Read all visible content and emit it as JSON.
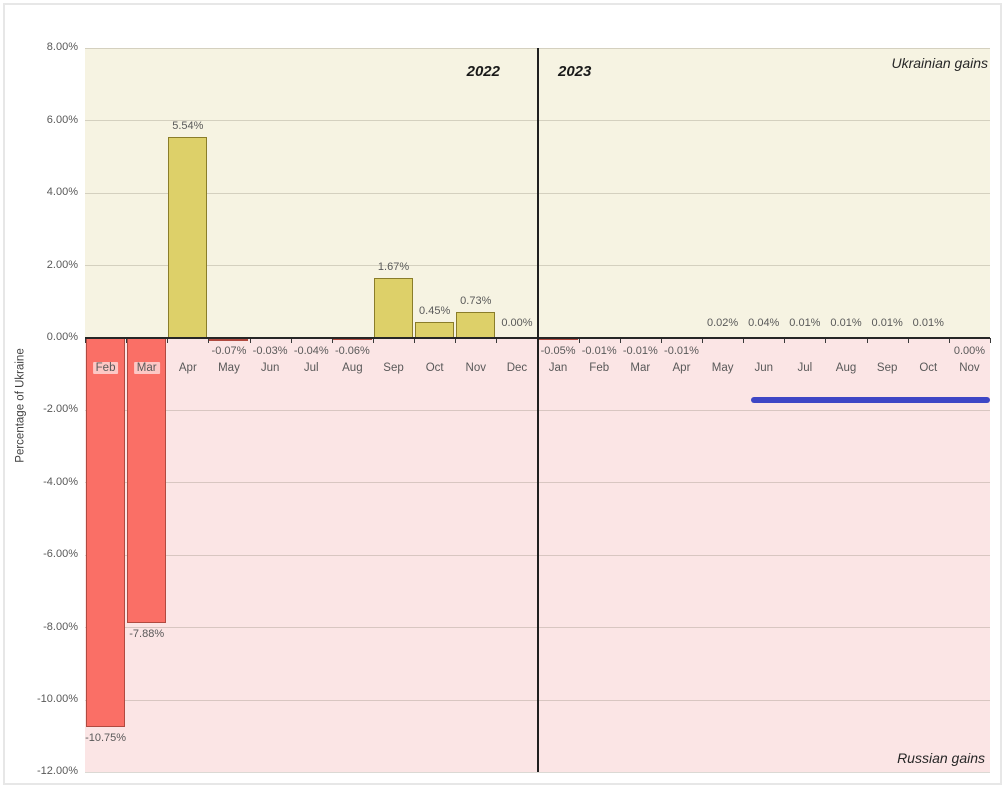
{
  "colors": {
    "positive_region_bg": "#f6f3e2",
    "negative_region_bg": "#fbe5e5",
    "positive_bar_fill": "#ddd069",
    "positive_bar_border": "#8a7d2a",
    "negative_bar_fill": "#fa6f66",
    "negative_bar_border": "#b04a40",
    "annotation_line": "#3e46c5",
    "axis_line": "#262626"
  },
  "chart_data": {
    "type": "bar",
    "ylabel": "Percentage of Ukraine",
    "ylim": [
      -12,
      8
    ],
    "grid": true,
    "y_ticks": [
      {
        "value": 8,
        "label": "8.00%"
      },
      {
        "value": 6,
        "label": "6.00%"
      },
      {
        "value": 4,
        "label": "4.00%"
      },
      {
        "value": 2,
        "label": "2.00%"
      },
      {
        "value": 0,
        "label": "0.00%"
      },
      {
        "value": -2,
        "label": "-2.00%"
      },
      {
        "value": -4,
        "label": "-4.00%"
      },
      {
        "value": -6,
        "label": "-6.00%"
      },
      {
        "value": -8,
        "label": "-8.00%"
      },
      {
        "value": -10,
        "label": "-10.00%"
      },
      {
        "value": -12,
        "label": "-12.00%"
      }
    ],
    "points": [
      {
        "year": 2022,
        "month": "Feb",
        "value": -10.75,
        "label": "-10.75%",
        "label_pos": "below_bar",
        "month_label_boxed": true
      },
      {
        "year": 2022,
        "month": "Mar",
        "value": -7.88,
        "label": "-7.88%",
        "label_pos": "below_bar",
        "month_label_boxed": true
      },
      {
        "year": 2022,
        "month": "Apr",
        "value": 5.54,
        "label": "5.54%",
        "label_pos": "above_bar",
        "month_label_boxed": false
      },
      {
        "year": 2022,
        "month": "May",
        "value": -0.07,
        "label": "-0.07%",
        "label_pos": "below_axis",
        "month_label_boxed": false
      },
      {
        "year": 2022,
        "month": "Jun",
        "value": -0.03,
        "label": "-0.03%",
        "label_pos": "below_axis",
        "month_label_boxed": false
      },
      {
        "year": 2022,
        "month": "Jul",
        "value": -0.04,
        "label": "-0.04%",
        "label_pos": "below_axis",
        "month_label_boxed": false
      },
      {
        "year": 2022,
        "month": "Aug",
        "value": -0.06,
        "label": "-0.06%",
        "label_pos": "below_axis",
        "month_label_boxed": false
      },
      {
        "year": 2022,
        "month": "Sep",
        "value": 1.67,
        "label": "1.67%",
        "label_pos": "above_bar",
        "month_label_boxed": false
      },
      {
        "year": 2022,
        "month": "Oct",
        "value": 0.45,
        "label": "0.45%",
        "label_pos": "above_bar",
        "month_label_boxed": false
      },
      {
        "year": 2022,
        "month": "Nov",
        "value": 0.73,
        "label": "0.73%",
        "label_pos": "above_bar",
        "month_label_boxed": false
      },
      {
        "year": 2022,
        "month": "Dec",
        "value": 0.0,
        "label": "0.00%",
        "label_pos": "above_axis",
        "month_label_boxed": false
      },
      {
        "year": 2023,
        "month": "Jan",
        "value": -0.05,
        "label": "-0.05%",
        "label_pos": "below_axis",
        "month_label_boxed": false
      },
      {
        "year": 2023,
        "month": "Feb",
        "value": -0.01,
        "label": "-0.01%",
        "label_pos": "below_axis",
        "month_label_boxed": false
      },
      {
        "year": 2023,
        "month": "Mar",
        "value": -0.01,
        "label": "-0.01%",
        "label_pos": "below_axis",
        "month_label_boxed": false
      },
      {
        "year": 2023,
        "month": "Apr",
        "value": -0.01,
        "label": "-0.01%",
        "label_pos": "below_axis",
        "month_label_boxed": false
      },
      {
        "year": 2023,
        "month": "May",
        "value": 0.02,
        "label": "0.02%",
        "label_pos": "above_axis",
        "month_label_boxed": false
      },
      {
        "year": 2023,
        "month": "Jun",
        "value": 0.04,
        "label": "0.04%",
        "label_pos": "above_axis",
        "month_label_boxed": false
      },
      {
        "year": 2023,
        "month": "Jul",
        "value": 0.01,
        "label": "0.01%",
        "label_pos": "above_axis",
        "month_label_boxed": false
      },
      {
        "year": 2023,
        "month": "Aug",
        "value": 0.01,
        "label": "0.01%",
        "label_pos": "above_axis",
        "month_label_boxed": false
      },
      {
        "year": 2023,
        "month": "Sep",
        "value": 0.01,
        "label": "0.01%",
        "label_pos": "above_axis",
        "month_label_boxed": false
      },
      {
        "year": 2023,
        "month": "Oct",
        "value": 0.01,
        "label": "0.01%",
        "label_pos": "above_axis",
        "month_label_boxed": false
      },
      {
        "year": 2023,
        "month": "Nov",
        "value": 0.0,
        "label": "0.00%",
        "label_pos": "below_axis",
        "month_label_boxed": false
      }
    ],
    "annotations": {
      "year_left": "2022",
      "year_right": "2023",
      "upper_region_label": "Ukrainian gains",
      "lower_region_label": "Russian gains",
      "blue_line": {
        "from_month": "Jun 2023",
        "to_month": "Nov 2023",
        "y_value_pct": -1.7,
        "color": "#3e46c5"
      }
    }
  }
}
